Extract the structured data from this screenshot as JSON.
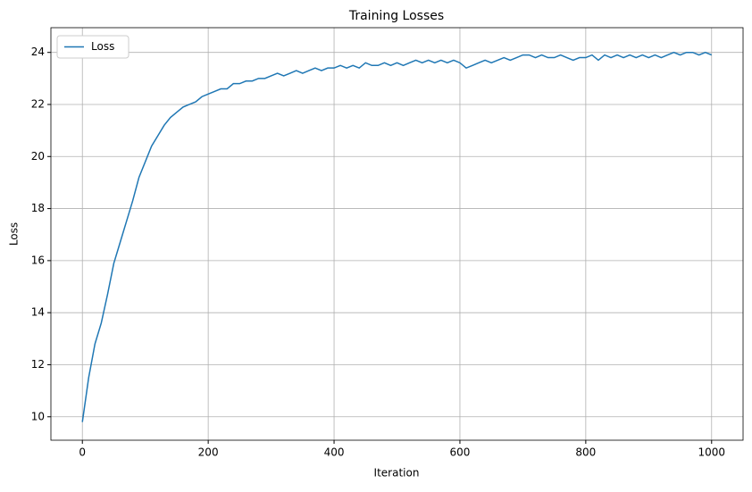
{
  "chart_data": {
    "type": "line",
    "title": "Training Losses",
    "x_label": "Iteration",
    "y_label": "Loss",
    "x": [
      0,
      10,
      20,
      30,
      40,
      50,
      60,
      70,
      80,
      90,
      100,
      110,
      120,
      130,
      140,
      150,
      160,
      170,
      180,
      190,
      200,
      210,
      220,
      230,
      240,
      250,
      260,
      270,
      280,
      290,
      300,
      310,
      320,
      330,
      340,
      350,
      360,
      370,
      380,
      390,
      400,
      410,
      420,
      430,
      440,
      450,
      460,
      470,
      480,
      490,
      500,
      510,
      520,
      530,
      540,
      550,
      560,
      570,
      580,
      590,
      600,
      610,
      620,
      630,
      640,
      650,
      660,
      670,
      680,
      690,
      700,
      710,
      720,
      730,
      740,
      750,
      760,
      770,
      780,
      790,
      800,
      810,
      820,
      830,
      840,
      850,
      860,
      870,
      880,
      890,
      900,
      910,
      920,
      930,
      940,
      950,
      960,
      970,
      980,
      990,
      1000
    ],
    "series": [
      {
        "name": "Loss",
        "color": "#1f77b4",
        "values": [
          9.8,
          11.5,
          12.8,
          13.6,
          14.7,
          15.9,
          16.7,
          17.5,
          18.3,
          19.2,
          19.8,
          20.4,
          20.8,
          21.2,
          21.5,
          21.7,
          21.9,
          22.0,
          22.1,
          22.3,
          22.4,
          22.5,
          22.6,
          22.6,
          22.8,
          22.8,
          22.9,
          22.9,
          23.0,
          23.0,
          23.1,
          23.2,
          23.1,
          23.2,
          23.3,
          23.2,
          23.3,
          23.4,
          23.3,
          23.4,
          23.4,
          23.5,
          23.4,
          23.5,
          23.4,
          23.6,
          23.5,
          23.5,
          23.6,
          23.5,
          23.6,
          23.5,
          23.6,
          23.7,
          23.6,
          23.7,
          23.6,
          23.7,
          23.6,
          23.7,
          23.6,
          23.4,
          23.5,
          23.6,
          23.7,
          23.6,
          23.7,
          23.8,
          23.7,
          23.8,
          23.9,
          23.9,
          23.8,
          23.9,
          23.8,
          23.8,
          23.9,
          23.8,
          23.7,
          23.8,
          23.8,
          23.9,
          23.7,
          23.9,
          23.8,
          23.9,
          23.8,
          23.9,
          23.8,
          23.9,
          23.8,
          23.9,
          23.8,
          23.9,
          24.0,
          23.9,
          24.0,
          24.0,
          23.9,
          24.0,
          23.9
        ]
      }
    ],
    "xlim": [
      -50,
      1050
    ],
    "xticks": [
      0,
      200,
      400,
      600,
      800,
      1000
    ],
    "ylim": [
      9.1,
      24.95
    ],
    "yticks": [
      10,
      12,
      14,
      16,
      18,
      20,
      22,
      24
    ],
    "grid": true,
    "legend": "upper-left"
  }
}
